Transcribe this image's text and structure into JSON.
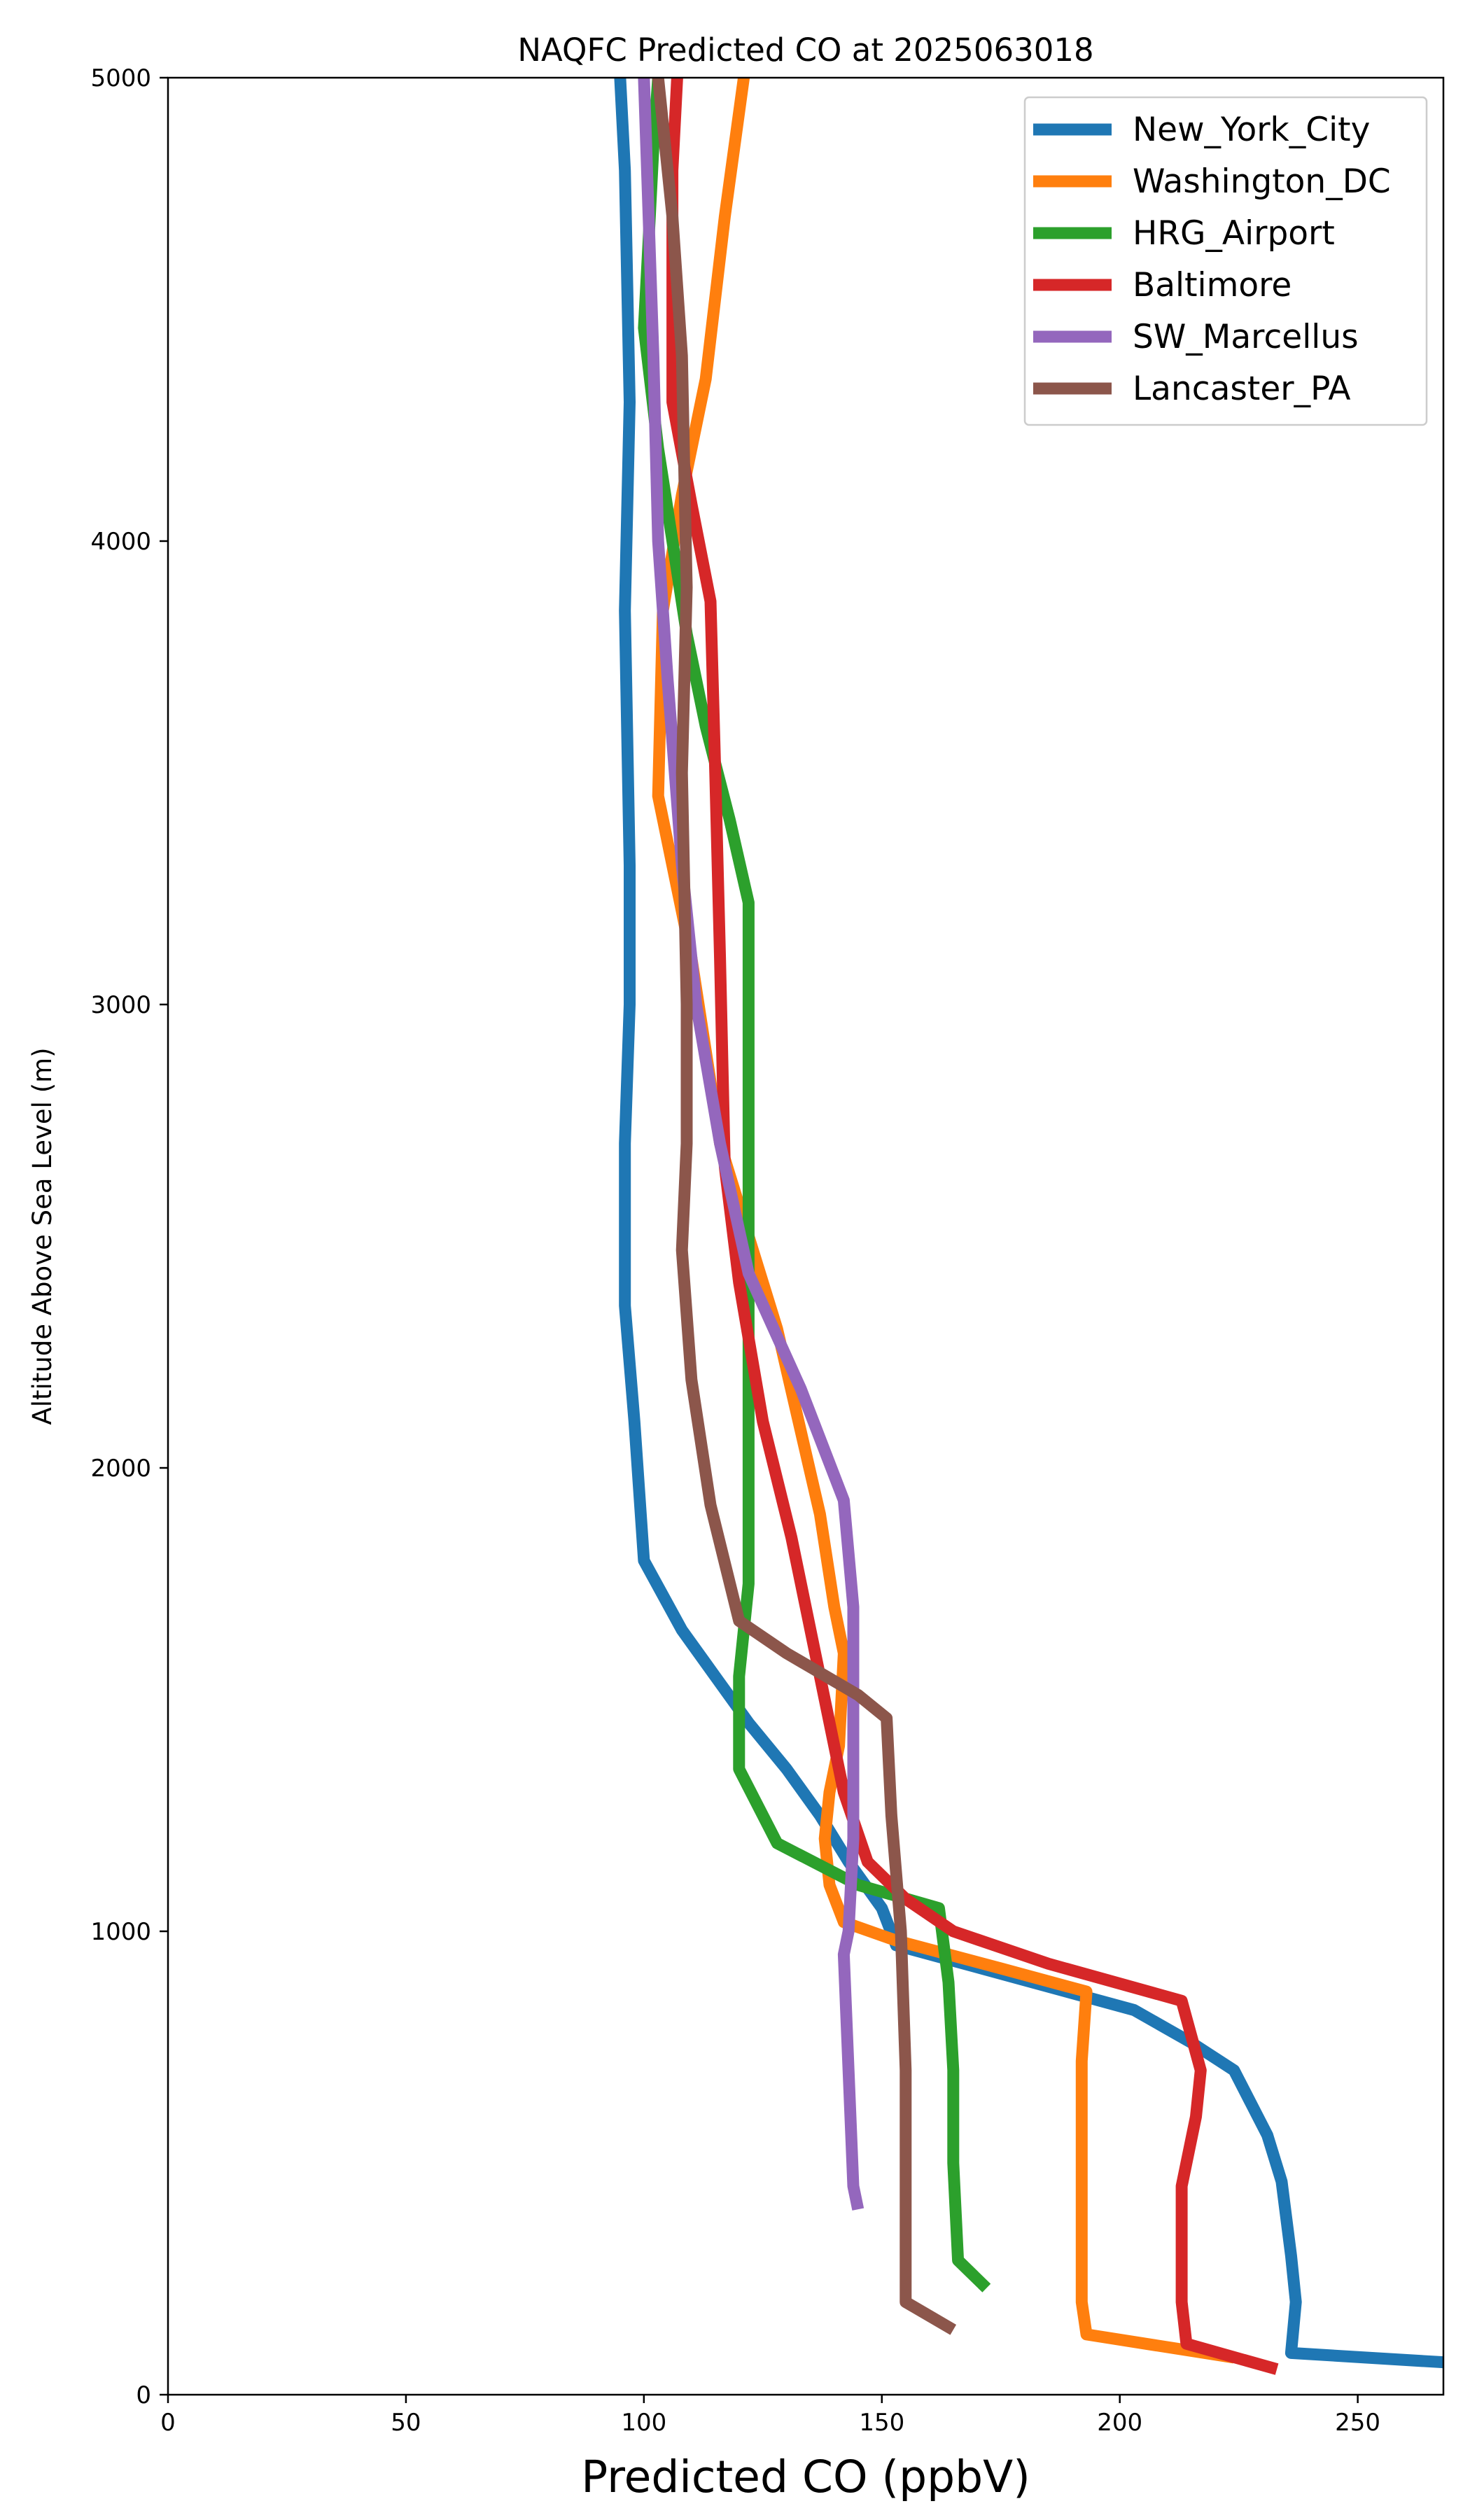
{
  "chart_data": {
    "type": "line",
    "title": "NAQFC Predicted CO at 2025063018",
    "xlabel": "Predicted CO (ppbV)",
    "ylabel": "Altitude Above Sea Level (m)",
    "xlim": [
      0,
      268
    ],
    "ylim": [
      0,
      5000
    ],
    "xticks": [
      0,
      50,
      100,
      150,
      200,
      250
    ],
    "yticks": [
      0,
      1000,
      2000,
      3000,
      4000,
      5000
    ],
    "legend_position": "upper-right",
    "grid": false,
    "series": [
      {
        "name": "New_York_City",
        "color": "#1f77b4",
        "points": [
          [
            268,
            70
          ],
          [
            236,
            90
          ],
          [
            237,
            200
          ],
          [
            236,
            300
          ],
          [
            234,
            460
          ],
          [
            231,
            560
          ],
          [
            224,
            700
          ],
          [
            215,
            760
          ],
          [
            203,
            830
          ],
          [
            178,
            900
          ],
          [
            153,
            970
          ],
          [
            150,
            1050
          ],
          [
            143,
            1150
          ],
          [
            137,
            1250
          ],
          [
            130,
            1350
          ],
          [
            122,
            1450
          ],
          [
            115,
            1550
          ],
          [
            108,
            1650
          ],
          [
            100,
            1800
          ],
          [
            98,
            2100
          ],
          [
            96,
            2350
          ],
          [
            96,
            2700
          ],
          [
            97,
            3000
          ],
          [
            97,
            3300
          ],
          [
            96,
            3850
          ],
          [
            97,
            4300
          ],
          [
            96,
            4800
          ],
          [
            95,
            5000
          ]
        ]
      },
      {
        "name": "Washington_DC",
        "color": "#ff7f0e",
        "points": [
          [
            224,
            80
          ],
          [
            193,
            130
          ],
          [
            192,
            200
          ],
          [
            192,
            400
          ],
          [
            192,
            720
          ],
          [
            193,
            870
          ],
          [
            175,
            920
          ],
          [
            153,
            980
          ],
          [
            142,
            1020
          ],
          [
            139,
            1100
          ],
          [
            138,
            1200
          ],
          [
            139,
            1300
          ],
          [
            141,
            1400
          ],
          [
            142,
            1600
          ],
          [
            140,
            1700
          ],
          [
            137,
            1900
          ],
          [
            128,
            2300
          ],
          [
            116,
            2700
          ],
          [
            110,
            3100
          ],
          [
            103,
            3450
          ],
          [
            104,
            3850
          ],
          [
            108,
            4100
          ],
          [
            113,
            4350
          ],
          [
            117,
            4700
          ],
          [
            121,
            5000
          ]
        ]
      },
      {
        "name": "HRG_Airport",
        "color": "#2ca02c",
        "points": [
          [
            172,
            230
          ],
          [
            166,
            290
          ],
          [
            165,
            500
          ],
          [
            165,
            700
          ],
          [
            164,
            890
          ],
          [
            162,
            1050
          ],
          [
            145,
            1100
          ],
          [
            128,
            1190
          ],
          [
            120,
            1350
          ],
          [
            120,
            1550
          ],
          [
            122,
            1750
          ],
          [
            122,
            2000
          ],
          [
            122,
            2500
          ],
          [
            122,
            2900
          ],
          [
            122,
            3220
          ],
          [
            118,
            3400
          ],
          [
            113,
            3600
          ],
          [
            109,
            3800
          ],
          [
            106,
            4000
          ],
          [
            103,
            4200
          ],
          [
            100,
            4460
          ],
          [
            101,
            4650
          ],
          [
            102,
            4850
          ],
          [
            103,
            5000
          ]
        ]
      },
      {
        "name": "Baltimore",
        "color": "#d62728",
        "points": [
          [
            233,
            55
          ],
          [
            214,
            110
          ],
          [
            213,
            200
          ],
          [
            213,
            450
          ],
          [
            216,
            600
          ],
          [
            217,
            700
          ],
          [
            213,
            850
          ],
          [
            185,
            930
          ],
          [
            165,
            1000
          ],
          [
            155,
            1070
          ],
          [
            147,
            1150
          ],
          [
            142,
            1300
          ],
          [
            138,
            1500
          ],
          [
            131,
            1850
          ],
          [
            125,
            2100
          ],
          [
            120,
            2400
          ],
          [
            117,
            2650
          ],
          [
            116,
            3100
          ],
          [
            115,
            3500
          ],
          [
            114,
            3870
          ],
          [
            110,
            4080
          ],
          [
            106,
            4300
          ],
          [
            106,
            4800
          ],
          [
            107,
            5000
          ]
        ]
      },
      {
        "name": "SW_Marcellus",
        "color": "#9467bd",
        "points": [
          [
            145,
            400
          ],
          [
            144,
            450
          ],
          [
            143,
            700
          ],
          [
            142,
            950
          ],
          [
            143,
            1000
          ],
          [
            144,
            1200
          ],
          [
            144,
            1500
          ],
          [
            144,
            1700
          ],
          [
            142,
            1930
          ],
          [
            133,
            2170
          ],
          [
            122,
            2420
          ],
          [
            116,
            2700
          ],
          [
            111,
            3000
          ],
          [
            108,
            3300
          ],
          [
            105,
            3700
          ],
          [
            103,
            4000
          ],
          [
            102,
            4400
          ],
          [
            101,
            4700
          ],
          [
            100,
            5000
          ]
        ]
      },
      {
        "name": "Lancaster_PA",
        "color": "#8c564b",
        "points": [
          [
            165,
            140
          ],
          [
            155,
            200
          ],
          [
            155,
            300
          ],
          [
            155,
            700
          ],
          [
            154,
            1000
          ],
          [
            152,
            1250
          ],
          [
            151,
            1460
          ],
          [
            145,
            1510
          ],
          [
            130,
            1600
          ],
          [
            120,
            1670
          ],
          [
            114,
            1920
          ],
          [
            110,
            2190
          ],
          [
            108,
            2470
          ],
          [
            109,
            2700
          ],
          [
            109,
            3000
          ],
          [
            108,
            3500
          ],
          [
            109,
            3900
          ],
          [
            108,
            4400
          ],
          [
            106,
            4700
          ],
          [
            103,
            5000
          ]
        ]
      }
    ]
  }
}
